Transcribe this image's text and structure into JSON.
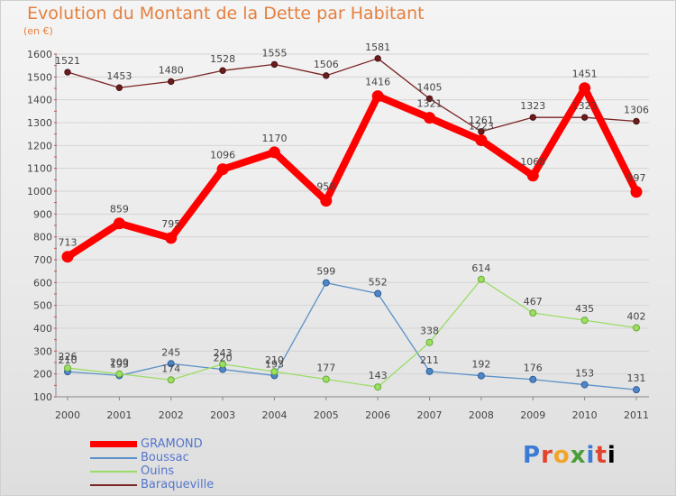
{
  "title": "Evolution du Montant de la Dette par Habitant",
  "unit_label": "(en €)",
  "logo_text": "Proxiti",
  "chart_data": {
    "type": "line",
    "title": "Evolution du Montant de la Dette par Habitant",
    "ylabel": "(en €)",
    "categories": [
      "2000",
      "2001",
      "2002",
      "2003",
      "2004",
      "2005",
      "2006",
      "2007",
      "2008",
      "2009",
      "2010",
      "2011"
    ],
    "ylim": [
      100,
      1600
    ],
    "yticks": [
      100,
      200,
      300,
      400,
      500,
      600,
      700,
      800,
      900,
      1000,
      1100,
      1200,
      1300,
      1400,
      1500,
      1600
    ],
    "grid": true,
    "legend_position": "bottom-left",
    "series": [
      {
        "name": "GRAMOND",
        "color": "#ff0000",
        "values": [
          713,
          859,
          795,
          1096,
          1170,
          958,
          1416,
          1321,
          1223,
          1068,
          1451,
          997
        ]
      },
      {
        "name": "Boussac",
        "color": "#5b91c7",
        "values": [
          210,
          193,
          245,
          220,
          193,
          599,
          552,
          211,
          192,
          176,
          153,
          131
        ]
      },
      {
        "name": "Ouins",
        "color": "#99dd66",
        "values": [
          226,
          200,
          174,
          243,
          210,
          177,
          143,
          338,
          614,
          467,
          435,
          402
        ]
      },
      {
        "name": "Baraqueville",
        "color": "#7a2424",
        "values": [
          1521,
          1453,
          1480,
          1528,
          1555,
          1506,
          1581,
          1405,
          1261,
          1323,
          1323,
          1306
        ]
      }
    ]
  }
}
